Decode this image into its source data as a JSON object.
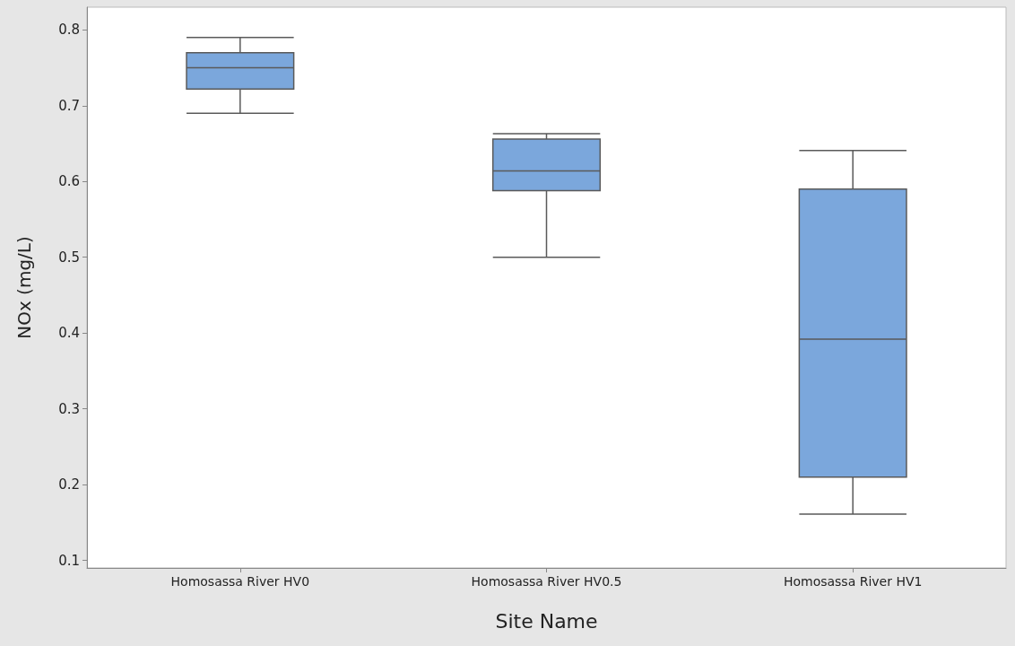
{
  "chart_data": {
    "type": "box",
    "xlabel": "Site Name",
    "ylabel": "NOx (mg/L)",
    "categories": [
      "Homosassa River HV0",
      "Homosassa River HV0.5",
      "Homosassa River HV1"
    ],
    "series": [
      {
        "color": "#7ba7dc",
        "boxes": [
          {
            "low": 0.69,
            "q1": 0.722,
            "median": 0.75,
            "q3": 0.77,
            "high": 0.79
          },
          {
            "low": 0.5,
            "q1": 0.588,
            "median": 0.614,
            "q3": 0.656,
            "high": 0.663
          },
          {
            "low": 0.161,
            "q1": 0.21,
            "median": 0.392,
            "q3": 0.59,
            "high": 0.641
          }
        ]
      }
    ],
    "ylim": [
      0.09,
      0.83
    ],
    "yticks": [
      0.1,
      0.2,
      0.3,
      0.4,
      0.5,
      0.6,
      0.7,
      0.8
    ],
    "grid": false
  }
}
